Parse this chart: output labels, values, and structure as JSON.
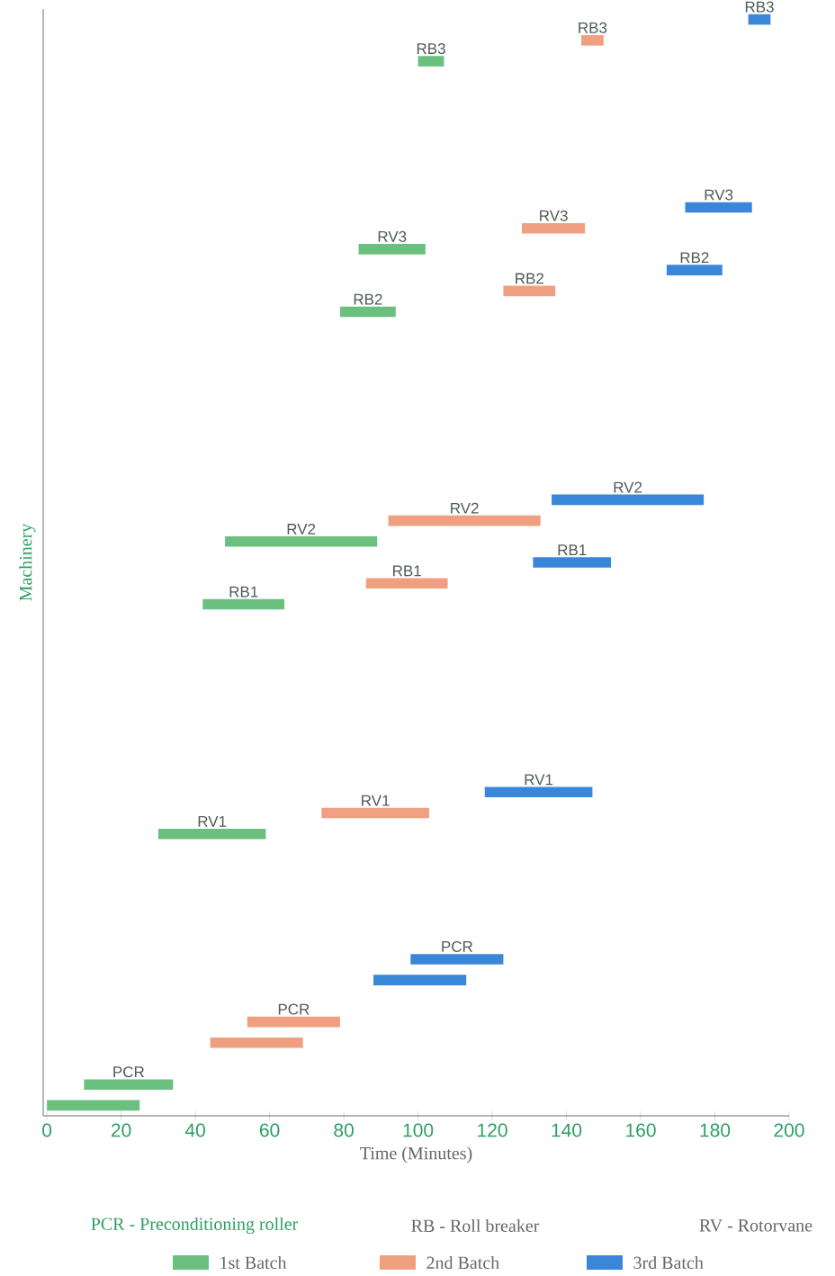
{
  "chart_data": {
    "type": "bar",
    "orientation": "horizontal",
    "xlabel": "Time (Minutes)",
    "ylabel": "Machinery",
    "categories": [
      null,
      null,
      null,
      null,
      null,
      null,
      null,
      null,
      null,
      null,
      null,
      null,
      null,
      null,
      null,
      null,
      null,
      null,
      null,
      null,
      null,
      null,
      null,
      null,
      null,
      null,
      null,
      null,
      null,
      null,
      null,
      null,
      null,
      null,
      null,
      null,
      null,
      null,
      null,
      null,
      null,
      null,
      null,
      null,
      null,
      null,
      null,
      null,
      null,
      null,
      null,
      null,
      null
    ],
    "series": [
      {
        "name": "1st Batch",
        "color": "#6cc07f",
        "base": [
          null,
          null,
          100,
          null,
          null,
          null,
          null,
          null,
          null,
          null,
          null,
          84,
          null,
          null,
          79,
          null,
          null,
          null,
          null,
          null,
          null,
          null,
          null,
          null,
          null,
          48,
          null,
          null,
          42,
          null,
          null,
          null,
          null,
          null,
          null,
          null,
          null,
          null,
          null,
          30,
          null,
          null,
          null,
          null,
          null,
          null,
          null,
          null,
          null,
          null,
          null,
          10,
          0
        ],
        "values": [
          null,
          null,
          7,
          null,
          null,
          null,
          null,
          null,
          null,
          null,
          null,
          18,
          null,
          null,
          15,
          null,
          null,
          null,
          null,
          null,
          null,
          null,
          null,
          null,
          null,
          41,
          null,
          null,
          22,
          null,
          null,
          null,
          null,
          null,
          null,
          null,
          null,
          null,
          null,
          29,
          null,
          null,
          null,
          null,
          null,
          null,
          null,
          null,
          null,
          null,
          null,
          24,
          25
        ],
        "value_labels": [
          null,
          null,
          "RB3",
          null,
          null,
          null,
          null,
          null,
          null,
          null,
          null,
          "RV3",
          null,
          null,
          "RB2",
          null,
          null,
          null,
          null,
          null,
          null,
          null,
          null,
          null,
          null,
          "RV2",
          null,
          null,
          "RB1",
          null,
          null,
          null,
          null,
          null,
          null,
          null,
          null,
          null,
          null,
          "RV1",
          null,
          null,
          null,
          null,
          null,
          null,
          null,
          null,
          null,
          null,
          null,
          "PCR",
          null
        ]
      },
      {
        "name": "2nd Batch",
        "color": "#f0a080",
        "base": [
          null,
          144,
          null,
          null,
          null,
          null,
          null,
          null,
          null,
          null,
          128,
          null,
          null,
          123,
          null,
          null,
          null,
          null,
          null,
          null,
          null,
          null,
          null,
          null,
          92,
          null,
          null,
          86,
          null,
          null,
          null,
          null,
          null,
          null,
          null,
          null,
          null,
          null,
          74,
          null,
          null,
          null,
          null,
          null,
          null,
          null,
          null,
          null,
          54,
          44,
          null,
          null,
          null
        ],
        "values": [
          null,
          6,
          null,
          null,
          null,
          null,
          null,
          null,
          null,
          null,
          17,
          null,
          null,
          14,
          null,
          null,
          null,
          null,
          null,
          null,
          null,
          null,
          null,
          null,
          41,
          null,
          null,
          22,
          null,
          null,
          null,
          null,
          null,
          null,
          null,
          null,
          null,
          null,
          29,
          null,
          null,
          null,
          null,
          null,
          null,
          null,
          null,
          null,
          25,
          25,
          null,
          null,
          null
        ],
        "value_labels": [
          null,
          "RB3",
          null,
          null,
          null,
          null,
          null,
          null,
          null,
          null,
          "RV3",
          null,
          null,
          "RB2",
          null,
          null,
          null,
          null,
          null,
          null,
          null,
          null,
          null,
          null,
          "RV2",
          null,
          null,
          "RB1",
          null,
          null,
          null,
          null,
          null,
          null,
          null,
          null,
          null,
          null,
          "RV1",
          null,
          null,
          null,
          null,
          null,
          null,
          null,
          null,
          null,
          "PCR",
          null,
          null,
          null,
          null
        ]
      },
      {
        "name": "3rd Batch",
        "color": "#3a86d8",
        "base": [
          189,
          null,
          null,
          null,
          null,
          null,
          null,
          null,
          null,
          172,
          null,
          null,
          167,
          null,
          null,
          null,
          null,
          null,
          null,
          null,
          null,
          null,
          null,
          136,
          null,
          null,
          131,
          null,
          null,
          null,
          null,
          null,
          null,
          null,
          null,
          null,
          null,
          118,
          null,
          null,
          null,
          null,
          null,
          null,
          null,
          98,
          88,
          null,
          null,
          null,
          null,
          null,
          null
        ],
        "values": [
          6,
          null,
          null,
          null,
          null,
          null,
          null,
          null,
          null,
          18,
          null,
          null,
          15,
          null,
          null,
          null,
          null,
          null,
          null,
          null,
          null,
          null,
          null,
          41,
          null,
          null,
          21,
          null,
          null,
          null,
          null,
          null,
          null,
          null,
          null,
          null,
          null,
          29,
          null,
          null,
          null,
          null,
          null,
          null,
          null,
          25,
          25,
          null,
          null,
          null,
          null,
          null,
          null
        ],
        "value_labels": [
          "RB3",
          null,
          null,
          null,
          null,
          null,
          null,
          null,
          null,
          "RV3",
          null,
          null,
          "RB2",
          null,
          null,
          null,
          null,
          null,
          null,
          null,
          null,
          null,
          null,
          "RV2",
          null,
          null,
          "RB1",
          null,
          null,
          null,
          null,
          null,
          null,
          null,
          null,
          null,
          null,
          "RV1",
          null,
          null,
          null,
          null,
          null,
          null,
          null,
          "PCR",
          null,
          null,
          null,
          null,
          null,
          null,
          null
        ]
      }
    ],
    "xlim": [
      -1,
      200
    ],
    "xticks": [
      0,
      20,
      40,
      60,
      80,
      100,
      120,
      140,
      160,
      180,
      200
    ],
    "tick_labels": "x",
    "legend": "bottom",
    "annotations": [
      "PCR - Preconditioning roller",
      "RB - Roll breaker",
      "RV - Rotorvane"
    ]
  }
}
